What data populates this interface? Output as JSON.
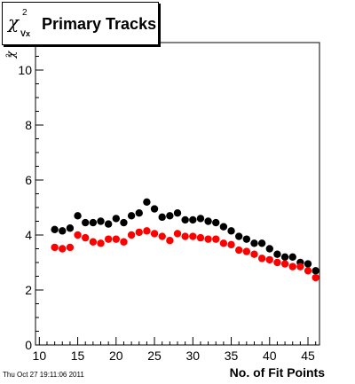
{
  "title": {
    "chi": "χ",
    "sup": "2",
    "sub": "Vx",
    "text": "Primary Tracks"
  },
  "footer": {
    "date": "Thu Oct 27 19:11:06 2011"
  },
  "chart_data": {
    "type": "scatter",
    "title": "Primary Tracks",
    "xlabel": "No. of Fit Points",
    "ylabel": "χ²",
    "xlim": [
      9.5,
      46.5
    ],
    "ylim": [
      0,
      11
    ],
    "x_ticks": [
      10,
      15,
      20,
      25,
      30,
      35,
      40,
      45
    ],
    "x_tick_labels": [
      "10",
      "15",
      "20",
      "25",
      "30",
      "35",
      "40",
      "45"
    ],
    "y_ticks": [
      0,
      2,
      4,
      6,
      8,
      10
    ],
    "y_tick_labels": [
      "0",
      "2",
      "4",
      "6",
      "8",
      "10"
    ],
    "grid": false,
    "x": [
      12,
      13,
      14,
      15,
      16,
      17,
      18,
      19,
      20,
      21,
      22,
      23,
      24,
      25,
      26,
      27,
      28,
      29,
      30,
      31,
      32,
      33,
      34,
      35,
      36,
      37,
      38,
      39,
      40,
      41,
      42,
      43,
      44,
      45,
      46
    ],
    "series": [
      {
        "color": "#000000",
        "values": [
          4.2,
          4.15,
          4.25,
          4.7,
          4.45,
          4.45,
          4.5,
          4.4,
          4.6,
          4.45,
          4.7,
          4.8,
          5.2,
          4.95,
          4.65,
          4.7,
          4.8,
          4.55,
          4.55,
          4.6,
          4.5,
          4.45,
          4.3,
          4.15,
          3.95,
          3.85,
          3.7,
          3.7,
          3.5,
          3.3,
          3.2,
          3.2,
          3.0,
          2.95,
          2.7
        ]
      },
      {
        "color": "#ff0000",
        "values": [
          3.55,
          3.5,
          3.55,
          4.0,
          3.9,
          3.75,
          3.7,
          3.85,
          3.85,
          3.75,
          4.0,
          4.1,
          4.15,
          4.05,
          3.95,
          3.8,
          4.05,
          3.95,
          3.95,
          3.9,
          3.85,
          3.85,
          3.7,
          3.65,
          3.45,
          3.4,
          3.3,
          3.15,
          3.1,
          3.0,
          2.95,
          2.85,
          2.85,
          2.7,
          2.45
        ]
      }
    ]
  }
}
